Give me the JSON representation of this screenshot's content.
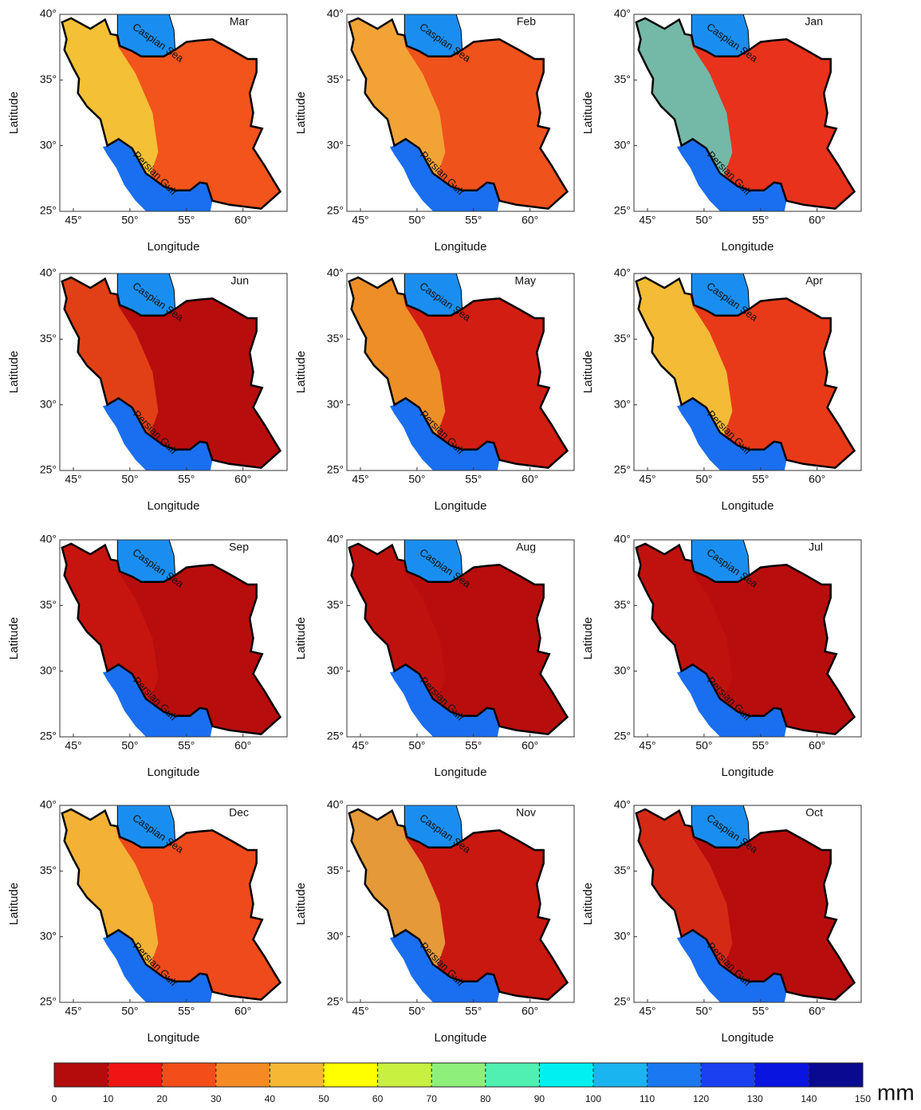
{
  "axes": {
    "xlabel": "Longitude",
    "ylabel": "Latitude",
    "xlim": [
      43.8,
      63.9
    ],
    "ylim": [
      25,
      40
    ],
    "xticks": [
      {
        "value": 45,
        "label": "45°"
      },
      {
        "value": 50,
        "label": "50°"
      },
      {
        "value": 55,
        "label": "55°"
      },
      {
        "value": 60,
        "label": "60°"
      }
    ],
    "yticks": [
      {
        "value": 25,
        "label": "25°"
      },
      {
        "value": 30,
        "label": "30°"
      },
      {
        "value": 35,
        "label": "35°"
      },
      {
        "value": 40,
        "label": "40°"
      }
    ]
  },
  "labels": {
    "caspian": "Caspian Sea",
    "gulf": "Persian Gulf"
  },
  "panels": [
    {
      "title": "Mar",
      "fill": "#f2541b",
      "west_fill": "#f5d33a"
    },
    {
      "title": "Feb",
      "fill": "#f0521c",
      "west_fill": "#f3b23a"
    },
    {
      "title": "Jan",
      "fill": "#e8321c",
      "west_fill": "#5fd0c0"
    },
    {
      "title": "Jun",
      "fill": "#b80d0d",
      "west_fill": "#e84a1a"
    },
    {
      "title": "May",
      "fill": "#d21d12",
      "west_fill": "#f2a22c"
    },
    {
      "title": "Apr",
      "fill": "#e83a18",
      "west_fill": "#f5d23c"
    },
    {
      "title": "Sep",
      "fill": "#b80d0d",
      "west_fill": "#c81810"
    },
    {
      "title": "Aug",
      "fill": "#b80d0d",
      "west_fill": "#c01410"
    },
    {
      "title": "Jul",
      "fill": "#b80d0d",
      "west_fill": "#c01410"
    },
    {
      "title": "Dec",
      "fill": "#ef4a1c",
      "west_fill": "#f3c33a"
    },
    {
      "title": "Nov",
      "fill": "#c8180f",
      "west_fill": "#eab040"
    },
    {
      "title": "Oct",
      "fill": "#b80d0d",
      "west_fill": "#d83018"
    }
  ],
  "colorbar": {
    "unit": "mm",
    "colors": [
      "#b40c0c",
      "#f01414",
      "#f34d1a",
      "#f58a25",
      "#f6b733",
      "#ffff00",
      "#c8f040",
      "#8ef07a",
      "#50f0b0",
      "#00f0f0",
      "#1ab4f0",
      "#1a78f0",
      "#1a40f0",
      "#0a14e0",
      "#0a0a90"
    ],
    "ticks": [
      0,
      10,
      20,
      30,
      40,
      50,
      60,
      70,
      80,
      90,
      100,
      110,
      120,
      130,
      140,
      150
    ]
  }
}
